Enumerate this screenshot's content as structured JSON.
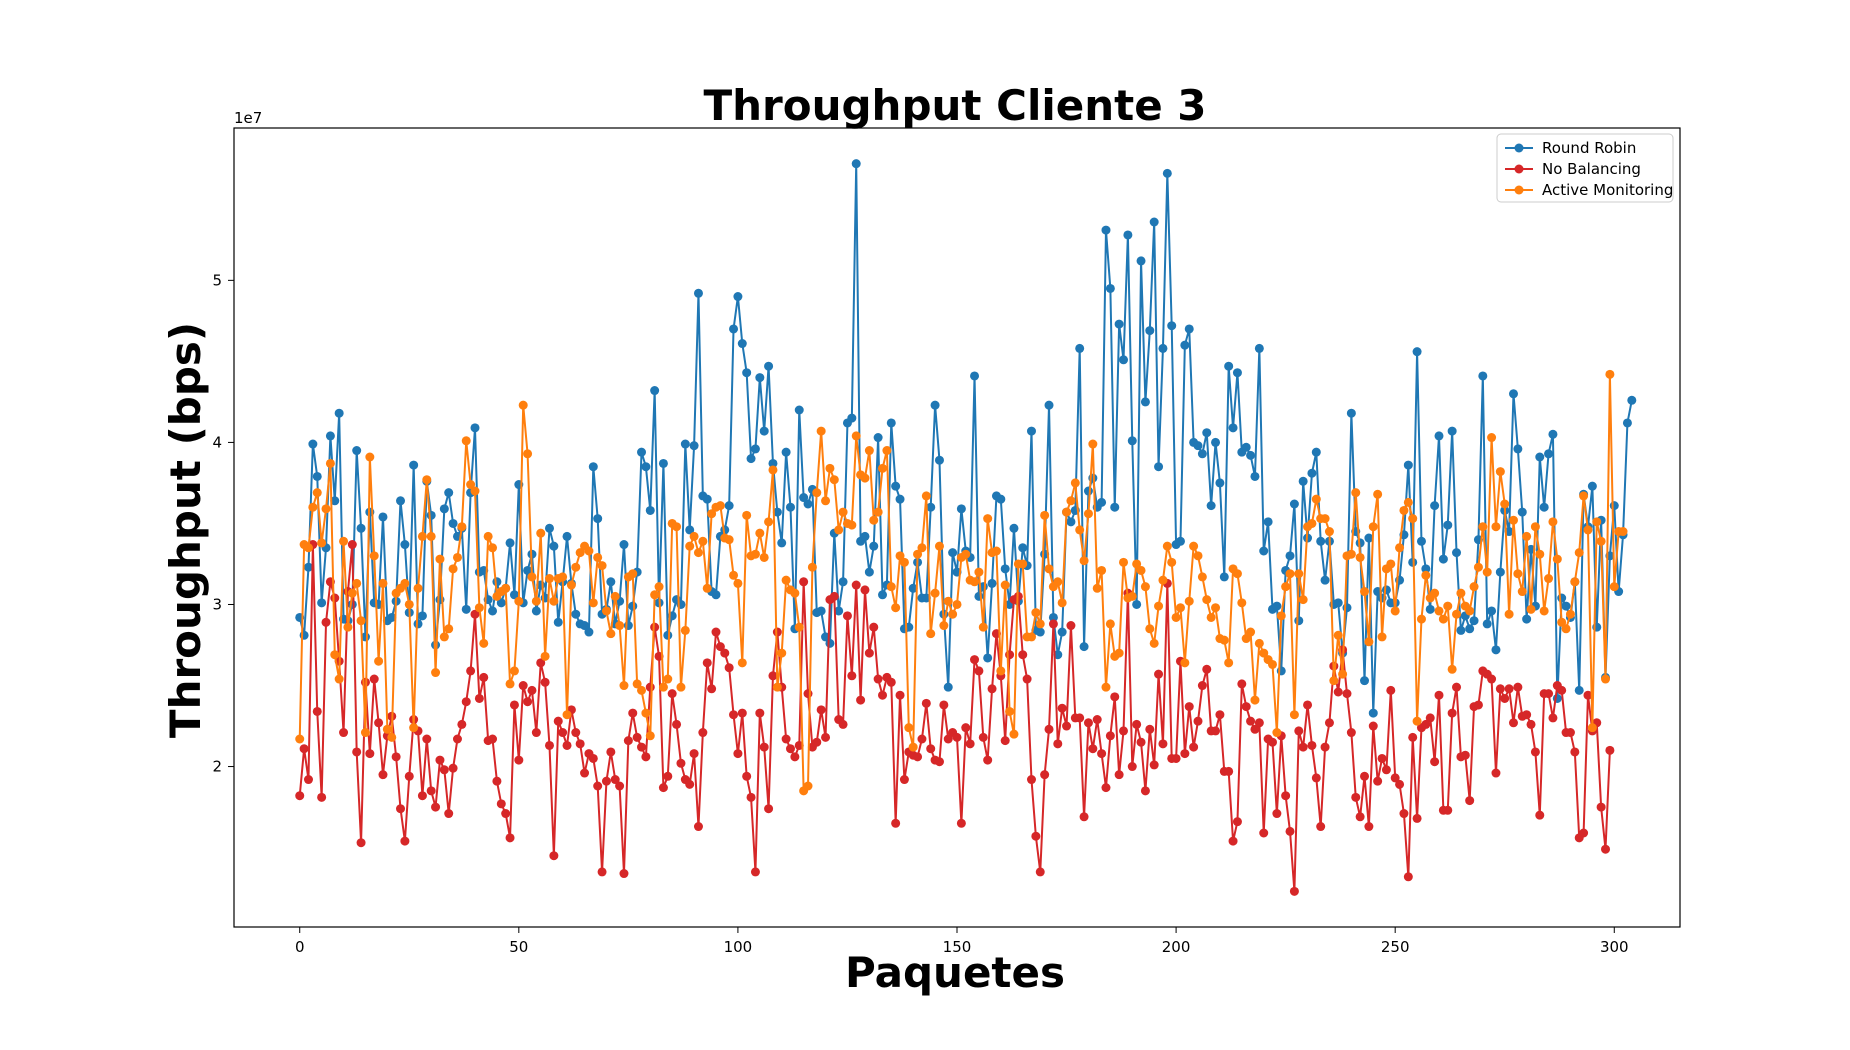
{
  "chart_data": {
    "type": "line",
    "title": "Throughput Cliente 3",
    "xlabel": "Paquetes",
    "ylabel": "Throughput (bps)",
    "y_offset_label": "1e7",
    "xlim": [
      -15,
      315
    ],
    "ylim": [
      10100000,
      59400000
    ],
    "xticks": [
      0,
      50,
      100,
      150,
      200,
      250,
      300
    ],
    "yticks": [
      20000000,
      30000000,
      40000000,
      50000000
    ],
    "ytick_labels": [
      "2",
      "3",
      "4",
      "5"
    ],
    "xtick_labels": [
      "0",
      "50",
      "100",
      "150",
      "200",
      "250",
      "300"
    ],
    "grid": false,
    "legend_position": "top-right",
    "marker": "circle",
    "series": [
      {
        "name": "Round Robin",
        "color": "#1f77b4",
        "y": [
          29.2,
          28.1,
          32.3,
          39.9,
          37.9,
          30.1,
          33.5,
          40.4,
          36.4,
          41.8,
          29.1,
          29.0,
          30.0,
          39.5,
          34.7,
          28.0,
          35.7,
          30.1,
          30.0,
          35.4,
          29.0,
          29.2,
          30.2,
          36.4,
          33.7,
          29.5,
          38.6,
          28.8,
          29.3,
          37.6,
          35.5,
          27.5,
          30.3,
          35.9,
          36.9,
          35.0,
          34.2,
          34.7,
          29.7,
          36.9,
          40.9,
          32.0,
          32.1,
          30.3,
          29.6,
          31.4,
          30.1,
          31.0,
          33.8,
          30.6,
          37.4,
          30.1,
          32.1,
          33.1,
          29.6,
          31.2,
          30.4,
          34.7,
          33.6,
          28.9,
          31.4,
          34.2,
          31.3,
          29.4,
          28.8,
          28.7,
          28.3,
          38.5,
          35.3,
          29.4,
          29.7,
          31.4,
          28.8,
          30.2,
          33.7,
          28.7,
          29.9,
          32.0,
          39.4,
          38.5,
          35.8,
          43.2,
          30.1,
          38.7,
          28.1,
          29.3,
          30.3,
          30.0,
          39.9,
          34.6,
          39.8,
          49.2,
          36.7,
          36.5,
          30.8,
          30.6,
          34.2,
          34.6,
          36.1,
          47.0,
          49.0,
          46.1,
          44.3,
          39.0,
          39.6,
          44.0,
          40.7,
          44.7,
          38.7,
          35.7,
          33.8,
          39.4,
          36.0,
          28.5,
          42.0,
          36.6,
          36.2,
          37.1,
          29.5,
          29.6,
          28.0,
          27.6,
          34.4,
          29.6,
          31.4,
          41.2,
          41.5,
          57.2,
          33.9,
          34.2,
          32.0,
          33.6,
          40.3,
          30.6,
          31.2,
          41.2,
          37.3,
          36.5,
          28.5,
          28.6,
          31.0,
          32.6,
          30.4,
          30.4,
          36.0,
          42.3,
          38.9,
          29.4,
          24.9,
          33.2,
          32.0,
          35.9,
          33.3,
          32.9,
          44.1,
          30.5,
          31.1,
          26.7,
          31.3,
          36.7,
          36.5,
          32.2,
          30.0,
          34.7,
          30.2,
          33.5,
          32.4,
          40.7,
          28.4,
          28.3,
          33.1,
          42.3,
          29.2,
          26.9,
          28.3,
          35.7,
          35.1,
          35.8,
          45.8,
          27.4,
          37.0,
          37.8,
          36.0,
          36.3,
          53.1,
          49.5,
          36.0,
          47.3,
          45.1,
          52.8,
          40.1,
          30.0,
          51.2,
          42.5,
          46.9,
          53.6,
          38.5,
          45.8,
          56.6,
          47.2,
          33.7,
          33.9,
          46.0,
          47.0,
          40.0,
          39.8,
          39.3,
          40.6,
          36.1,
          40.0,
          37.5,
          31.7,
          44.7,
          40.9,
          44.3,
          39.4,
          39.7,
          39.2,
          37.9,
          45.8,
          33.3,
          35.1,
          29.7,
          29.9,
          25.9,
          32.1,
          33.0,
          36.2,
          29.0,
          37.6,
          34.1,
          38.1,
          39.4,
          33.9,
          31.5,
          33.9,
          30.0,
          30.1,
          27.0,
          29.8,
          41.8,
          34.5,
          33.8,
          25.3,
          34.1,
          23.3,
          30.8,
          30.4,
          30.9,
          30.1,
          30.1,
          31.5,
          34.3,
          38.6,
          32.6,
          45.6,
          33.9,
          32.2,
          29.7,
          36.1,
          40.4,
          32.8,
          34.9,
          40.7,
          33.2,
          28.4,
          29.3,
          28.5,
          29.0,
          34.0,
          44.1,
          28.8,
          29.6,
          27.2,
          32.0,
          35.8,
          34.5,
          43.0,
          39.6,
          35.7,
          29.1,
          33.4,
          29.9,
          39.1,
          36.0,
          39.3,
          40.5,
          24.2,
          30.4,
          29.9,
          29.2,
          31.4,
          24.7,
          36.8,
          34.8,
          37.3,
          28.6,
          35.2,
          25.5,
          33.0,
          36.1,
          30.8,
          34.3,
          41.2,
          42.6
        ]
      },
      {
        "name": "No Balancing",
        "color": "#d62728",
        "y": [
          18.2,
          21.1,
          19.2,
          33.7,
          23.4,
          18.1,
          28.9,
          31.4,
          30.4,
          26.5,
          22.1,
          30.8,
          33.7,
          20.9,
          15.3,
          25.2,
          20.8,
          25.4,
          22.7,
          19.5,
          21.9,
          23.1,
          20.6,
          17.4,
          15.4,
          19.4,
          22.9,
          22.2,
          18.2,
          21.7,
          18.5,
          17.5,
          20.4,
          19.8,
          17.1,
          19.9,
          21.7,
          22.6,
          24.0,
          25.9,
          29.4,
          24.2,
          25.5,
          21.6,
          21.7,
          19.1,
          17.7,
          17.1,
          15.6,
          23.8,
          20.4,
          25.0,
          24.0,
          24.7,
          22.1,
          26.4,
          25.2,
          21.3,
          14.5,
          22.8,
          22.1,
          21.3,
          23.5,
          22.1,
          21.4,
          19.6,
          20.8,
          20.5,
          18.8,
          13.5,
          19.1,
          20.9,
          19.2,
          18.8,
          13.4,
          21.6,
          23.3,
          21.8,
          21.2,
          20.6,
          24.9,
          28.6,
          26.8,
          18.7,
          19.4,
          24.5,
          22.6,
          20.2,
          19.2,
          18.9,
          20.8,
          16.3,
          22.1,
          26.4,
          24.8,
          28.3,
          27.4,
          27.0,
          26.1,
          23.2,
          20.8,
          23.3,
          19.4,
          18.1,
          13.5,
          23.3,
          21.2,
          17.4,
          25.6,
          28.3,
          24.9,
          21.7,
          21.1,
          20.6,
          21.3,
          31.4,
          24.5,
          21.2,
          21.5,
          23.5,
          21.8,
          30.3,
          30.5,
          22.9,
          22.6,
          29.3,
          25.6,
          31.2,
          24.1,
          30.9,
          27.0,
          28.6,
          25.4,
          24.4,
          25.5,
          25.2,
          16.5,
          24.4,
          19.2,
          20.9,
          20.7,
          20.6,
          21.7,
          23.9,
          21.1,
          20.4,
          20.3,
          23.8,
          21.7,
          22.1,
          21.8,
          16.5,
          22.4,
          21.4,
          26.6,
          25.9,
          21.8,
          20.4,
          24.8,
          28.2,
          25.6,
          21.6,
          26.9,
          30.3,
          30.5,
          26.9,
          25.4,
          19.2,
          15.7,
          13.5,
          19.5,
          22.3,
          28.8,
          21.4,
          23.6,
          22.5,
          28.7,
          23.0,
          23.0,
          16.9,
          22.7,
          21.1,
          22.9,
          20.8,
          18.7,
          21.9,
          24.3,
          19.5,
          22.2,
          30.7,
          20.0,
          22.6,
          21.5,
          18.5,
          22.3,
          20.1,
          25.7,
          21.4,
          31.3,
          20.5,
          20.5,
          26.5,
          20.8,
          23.7,
          21.2,
          22.8,
          25.0,
          26.0,
          22.2,
          22.2,
          23.2,
          19.7,
          19.7,
          15.4,
          16.6,
          25.1,
          23.7,
          22.8,
          22.3,
          22.7,
          15.9,
          21.7,
          21.5,
          17.1,
          21.9,
          18.2,
          16.0,
          12.3,
          22.2,
          21.2,
          23.8,
          21.3,
          19.3,
          16.3,
          21.2,
          22.7,
          26.2,
          24.6,
          27.2,
          24.5,
          22.1,
          18.1,
          16.9,
          19.4,
          16.3,
          22.5,
          19.1,
          20.5,
          19.8,
          24.7,
          19.3,
          18.9,
          17.1,
          13.2,
          21.8,
          16.8,
          22.4,
          22.6,
          23.0,
          20.3,
          24.4,
          17.3,
          17.3,
          23.3,
          24.9,
          20.6,
          20.7,
          17.9,
          23.7,
          23.8,
          25.9,
          25.7,
          25.4,
          19.6,
          24.8,
          24.2,
          24.8,
          22.7,
          24.9,
          23.1,
          23.2,
          22.6,
          20.9,
          17.0,
          24.5,
          24.5,
          23.0,
          25.0,
          24.7,
          22.1,
          22.1,
          20.9,
          15.6,
          15.9,
          24.4,
          22.2,
          22.7,
          17.5,
          14.9,
          21.0
        ]
      },
      {
        "name": "Active Monitoring",
        "color": "#ff7f0e",
        "y": [
          21.7,
          33.7,
          33.5,
          36.0,
          36.9,
          33.8,
          35.9,
          38.7,
          26.9,
          25.4,
          33.9,
          28.6,
          30.7,
          31.3,
          29.0,
          22.1,
          39.1,
          33.0,
          26.5,
          31.3,
          22.3,
          21.8,
          30.7,
          31.0,
          31.3,
          30.0,
          22.4,
          31.0,
          34.2,
          37.7,
          34.2,
          25.8,
          32.8,
          28.0,
          28.5,
          32.2,
          32.9,
          34.8,
          40.1,
          37.4,
          37.0,
          29.8,
          27.6,
          34.2,
          33.5,
          30.5,
          30.8,
          31.0,
          25.1,
          25.9,
          30.2,
          42.3,
          39.3,
          31.7,
          30.2,
          34.4,
          26.8,
          31.6,
          30.2,
          31.6,
          31.7,
          23.2,
          31.2,
          32.3,
          33.2,
          33.6,
          33.3,
          30.1,
          32.9,
          32.4,
          29.6,
          28.2,
          30.5,
          28.7,
          25.0,
          31.7,
          31.9,
          25.1,
          24.7,
          23.3,
          21.9,
          30.6,
          31.1,
          24.9,
          25.4,
          35.0,
          34.8,
          24.9,
          28.4,
          33.6,
          34.2,
          33.2,
          33.9,
          31.0,
          35.6,
          36.0,
          36.1,
          34.1,
          34.0,
          31.8,
          31.3,
          26.4,
          35.5,
          33.0,
          33.1,
          34.4,
          32.9,
          35.1,
          38.3,
          24.9,
          27.0,
          31.5,
          30.9,
          30.7,
          28.6,
          18.5,
          18.8,
          32.3,
          36.9,
          40.7,
          36.4,
          38.4,
          37.7,
          34.6,
          35.7,
          35.0,
          34.9,
          40.4,
          38.0,
          37.8,
          39.5,
          35.2,
          35.7,
          38.4,
          39.5,
          31.1,
          29.8,
          33.0,
          32.6,
          22.4,
          21.2,
          33.1,
          33.5,
          36.7,
          28.2,
          30.7,
          33.6,
          28.7,
          30.2,
          29.4,
          30.0,
          32.9,
          33.1,
          31.5,
          31.4,
          32.0,
          28.6,
          35.3,
          33.2,
          33.3,
          25.9,
          31.2,
          23.4,
          22.0,
          32.5,
          32.5,
          28.0,
          28.0,
          29.5,
          28.8,
          35.5,
          32.2,
          31.1,
          31.4,
          30.1,
          35.7,
          36.4,
          37.5,
          34.6,
          32.7,
          35.6,
          39.9,
          31.0,
          32.1,
          24.9,
          28.8,
          26.8,
          27.0,
          32.6,
          30.4,
          30.5,
          32.5,
          32.1,
          31.1,
          28.5,
          27.6,
          29.9,
          31.5,
          33.6,
          32.6,
          29.2,
          29.8,
          26.4,
          30.2,
          33.6,
          33.0,
          31.7,
          30.3,
          29.2,
          29.8,
          27.9,
          27.8,
          26.4,
          32.2,
          31.9,
          30.1,
          27.9,
          28.3,
          24.1,
          27.6,
          27.0,
          26.6,
          26.3,
          22.1,
          29.3,
          31.1,
          31.9,
          23.2,
          31.9,
          30.3,
          34.8,
          35.0,
          36.5,
          35.3,
          35.3,
          34.5,
          25.3,
          28.1,
          25.7,
          33.0,
          33.1,
          36.9,
          32.9,
          30.8,
          27.7,
          34.8,
          36.8,
          28.0,
          32.2,
          32.5,
          29.6,
          33.5,
          35.8,
          36.3,
          35.3,
          22.8,
          29.1,
          31.8,
          30.4,
          30.7,
          29.6,
          29.1,
          29.9,
          26.0,
          29.4,
          30.7,
          29.9,
          29.6,
          31.1,
          32.3,
          34.8,
          32.0,
          40.3,
          34.8,
          38.2,
          36.2,
          29.4,
          35.2,
          31.9,
          30.8,
          34.2,
          29.7,
          34.8,
          33.1,
          29.6,
          31.6,
          35.1,
          32.8,
          28.9,
          28.5,
          29.4,
          31.4,
          33.2,
          36.7,
          34.6,
          22.4,
          35.1,
          33.9,
          25.4,
          44.2,
          31.1,
          34.5,
          34.5
        ]
      }
    ]
  }
}
